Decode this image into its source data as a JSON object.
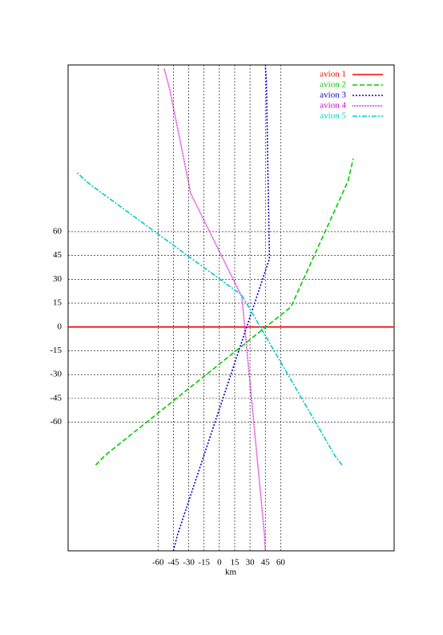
{
  "chart_data": {
    "type": "line",
    "x_label": "km",
    "xlim": [
      -148,
      171
    ],
    "ylim": [
      -141,
      165
    ],
    "xticks": [
      -60,
      -45,
      -30,
      -15,
      0,
      15,
      30,
      45,
      60
    ],
    "yticks": [
      -60,
      -45,
      -30,
      -15,
      0,
      15,
      30,
      45,
      60
    ],
    "grid": true,
    "legend": "top-right",
    "series": [
      {
        "name": "avion 1",
        "color": "#ff0000",
        "x": [
          -148,
          171
        ],
        "values": [
          0,
          0
        ]
      },
      {
        "name": "avion 2",
        "color": "#00cc00",
        "x": [
          -121,
          -112,
          70,
          126,
          131
        ],
        "values": [
          -87,
          -81,
          12.6,
          92,
          106
        ]
      },
      {
        "name": "avion 3",
        "color": "#0000cc",
        "x": [
          -45,
          -41,
          49,
          46,
          45
        ],
        "values": [
          -141,
          -131,
          43,
          155,
          165
        ]
      },
      {
        "name": "avion 4",
        "color": "#cc00cc",
        "x": [
          45,
          44,
          22,
          -28,
          -48,
          -54
        ],
        "values": [
          -141,
          -130,
          19,
          84,
          148,
          163
        ]
      },
      {
        "name": "avion 5",
        "color": "#00cccc",
        "x": [
          120,
          113,
          22,
          -127,
          -139
        ],
        "values": [
          -87,
          -81,
          20,
          90,
          97
        ]
      }
    ]
  }
}
